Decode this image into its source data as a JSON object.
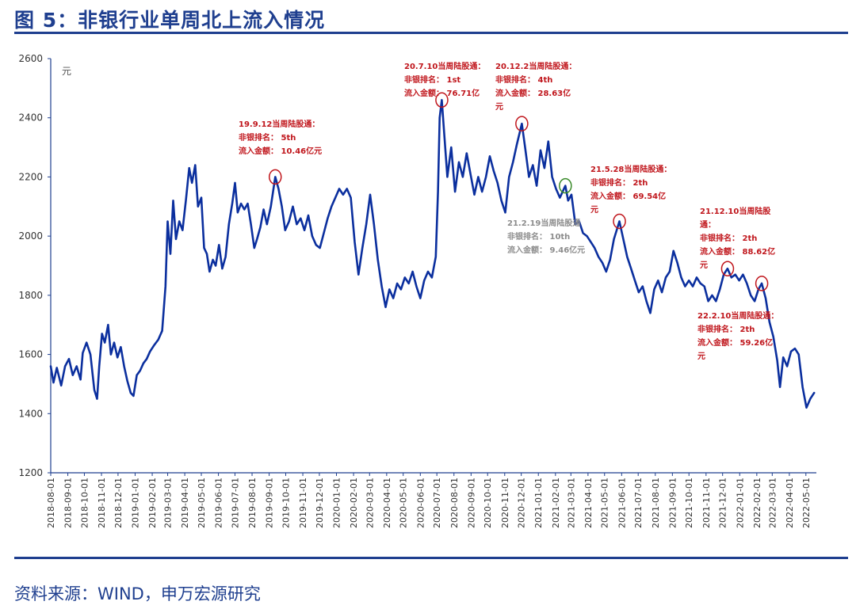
{
  "figure_title": "图 5：非银行业单周北上流入情况",
  "source_note": "资料来源：WIND，申万宏源研究",
  "colors": {
    "line": "#0b2f9e",
    "axis": "#1f3f8f",
    "red_annotation": "#c0161c",
    "gray_annotation": "#8c8c8c",
    "green_marker": "#3a8a2a"
  },
  "chart_data": {
    "type": "line",
    "ylabel": "元",
    "xlabel": "",
    "ylim": [
      1200,
      2600
    ],
    "yticks": [
      1200,
      1400,
      1600,
      1800,
      2000,
      2200,
      2400,
      2600
    ],
    "grid": false,
    "xrange": [
      "2018-08-01",
      "2022-05-20"
    ],
    "xtick_labels": [
      "2018-08-01",
      "2018-09-01",
      "2018-10-01",
      "2018-11-01",
      "2018-12-01",
      "2019-01-01",
      "2019-02-01",
      "2019-03-01",
      "2019-04-01",
      "2019-05-01",
      "2019-06-01",
      "2019-07-01",
      "2019-08-01",
      "2019-09-01",
      "2019-10-01",
      "2019-11-01",
      "2019-12-01",
      "2020-01-01",
      "2020-02-01",
      "2020-03-01",
      "2020-04-01",
      "2020-05-01",
      "2020-06-01",
      "2020-07-01",
      "2020-08-01",
      "2020-09-01",
      "2020-10-01",
      "2020-11-01",
      "2020-12-01",
      "2021-01-01",
      "2021-02-01",
      "2021-03-01",
      "2021-04-01",
      "2021-05-01",
      "2021-06-01",
      "2021-07-01",
      "2021-08-01",
      "2021-09-01",
      "2021-10-01",
      "2021-11-01",
      "2021-12-01",
      "2022-01-01",
      "2022-02-01",
      "2022-03-01",
      "2022-04-01",
      "2022-05-01"
    ],
    "series": [
      {
        "values": [
          [
            "2018-08-01",
            1560
          ],
          [
            "2018-08-06",
            1505
          ],
          [
            "2018-08-12",
            1555
          ],
          [
            "2018-08-20",
            1495
          ],
          [
            "2018-08-27",
            1560
          ],
          [
            "2018-09-03",
            1585
          ],
          [
            "2018-09-10",
            1530
          ],
          [
            "2018-09-17",
            1560
          ],
          [
            "2018-09-24",
            1515
          ],
          [
            "2018-09-28",
            1605
          ],
          [
            "2018-10-05",
            1640
          ],
          [
            "2018-10-12",
            1600
          ],
          [
            "2018-10-19",
            1480
          ],
          [
            "2018-10-24",
            1450
          ],
          [
            "2018-10-28",
            1560
          ],
          [
            "2018-11-02",
            1670
          ],
          [
            "2018-11-07",
            1640
          ],
          [
            "2018-11-13",
            1700
          ],
          [
            "2018-11-18",
            1600
          ],
          [
            "2018-11-24",
            1640
          ],
          [
            "2018-11-30",
            1590
          ],
          [
            "2018-12-06",
            1625
          ],
          [
            "2018-12-12",
            1560
          ],
          [
            "2018-12-18",
            1510
          ],
          [
            "2018-12-24",
            1470
          ],
          [
            "2018-12-29",
            1460
          ],
          [
            "2019-01-04",
            1530
          ],
          [
            "2019-01-10",
            1545
          ],
          [
            "2019-01-16",
            1570
          ],
          [
            "2019-01-22",
            1585
          ],
          [
            "2019-01-28",
            1610
          ],
          [
            "2019-02-04",
            1630
          ],
          [
            "2019-02-12",
            1650
          ],
          [
            "2019-02-19",
            1680
          ],
          [
            "2019-02-25",
            1830
          ],
          [
            "2019-03-01",
            2050
          ],
          [
            "2019-03-06",
            1940
          ],
          [
            "2019-03-11",
            2120
          ],
          [
            "2019-03-16",
            1990
          ],
          [
            "2019-03-22",
            2050
          ],
          [
            "2019-03-28",
            2020
          ],
          [
            "2019-04-03",
            2120
          ],
          [
            "2019-04-09",
            2230
          ],
          [
            "2019-04-14",
            2180
          ],
          [
            "2019-04-20",
            2240
          ],
          [
            "2019-04-25",
            2100
          ],
          [
            "2019-05-01",
            2130
          ],
          [
            "2019-05-06",
            1960
          ],
          [
            "2019-05-11",
            1940
          ],
          [
            "2019-05-16",
            1880
          ],
          [
            "2019-05-22",
            1920
          ],
          [
            "2019-05-27",
            1900
          ],
          [
            "2019-06-02",
            1970
          ],
          [
            "2019-06-08",
            1890
          ],
          [
            "2019-06-14",
            1930
          ],
          [
            "2019-06-20",
            2040
          ],
          [
            "2019-06-26",
            2110
          ],
          [
            "2019-07-01",
            2180
          ],
          [
            "2019-07-06",
            2080
          ],
          [
            "2019-07-12",
            2110
          ],
          [
            "2019-07-18",
            2090
          ],
          [
            "2019-07-24",
            2110
          ],
          [
            "2019-07-30",
            2040
          ],
          [
            "2019-08-05",
            1960
          ],
          [
            "2019-08-10",
            1990
          ],
          [
            "2019-08-16",
            2030
          ],
          [
            "2019-08-22",
            2090
          ],
          [
            "2019-08-28",
            2040
          ],
          [
            "2019-09-04",
            2100
          ],
          [
            "2019-09-12",
            2200
          ],
          [
            "2019-09-18",
            2160
          ],
          [
            "2019-09-24",
            2100
          ],
          [
            "2019-09-30",
            2020
          ],
          [
            "2019-10-07",
            2050
          ],
          [
            "2019-10-14",
            2100
          ],
          [
            "2019-10-21",
            2040
          ],
          [
            "2019-10-28",
            2060
          ],
          [
            "2019-11-04",
            2020
          ],
          [
            "2019-11-11",
            2070
          ],
          [
            "2019-11-18",
            2000
          ],
          [
            "2019-11-25",
            1970
          ],
          [
            "2019-12-02",
            1960
          ],
          [
            "2019-12-09",
            2010
          ],
          [
            "2019-12-16",
            2060
          ],
          [
            "2019-12-23",
            2100
          ],
          [
            "2019-12-30",
            2130
          ],
          [
            "2020-01-06",
            2160
          ],
          [
            "2020-01-13",
            2140
          ],
          [
            "2020-01-20",
            2160
          ],
          [
            "2020-01-27",
            2130
          ],
          [
            "2020-02-03",
            1980
          ],
          [
            "2020-02-10",
            1870
          ],
          [
            "2020-02-17",
            1960
          ],
          [
            "2020-02-24",
            2040
          ],
          [
            "2020-03-02",
            2140
          ],
          [
            "2020-03-09",
            2040
          ],
          [
            "2020-03-16",
            1920
          ],
          [
            "2020-03-23",
            1830
          ],
          [
            "2020-03-30",
            1760
          ],
          [
            "2020-04-06",
            1820
          ],
          [
            "2020-04-13",
            1790
          ],
          [
            "2020-04-20",
            1840
          ],
          [
            "2020-04-27",
            1820
          ],
          [
            "2020-05-04",
            1860
          ],
          [
            "2020-05-11",
            1840
          ],
          [
            "2020-05-18",
            1880
          ],
          [
            "2020-05-25",
            1830
          ],
          [
            "2020-06-01",
            1790
          ],
          [
            "2020-06-08",
            1850
          ],
          [
            "2020-06-15",
            1880
          ],
          [
            "2020-06-22",
            1860
          ],
          [
            "2020-06-29",
            1930
          ],
          [
            "2020-07-03",
            2150
          ],
          [
            "2020-07-06",
            2400
          ],
          [
            "2020-07-10",
            2460
          ],
          [
            "2020-07-15",
            2330
          ],
          [
            "2020-07-20",
            2200
          ],
          [
            "2020-07-27",
            2300
          ],
          [
            "2020-08-03",
            2150
          ],
          [
            "2020-08-10",
            2250
          ],
          [
            "2020-08-17",
            2200
          ],
          [
            "2020-08-24",
            2280
          ],
          [
            "2020-08-31",
            2210
          ],
          [
            "2020-09-07",
            2140
          ],
          [
            "2020-09-14",
            2200
          ],
          [
            "2020-09-21",
            2150
          ],
          [
            "2020-09-28",
            2200
          ],
          [
            "2020-10-05",
            2270
          ],
          [
            "2020-10-12",
            2220
          ],
          [
            "2020-10-19",
            2180
          ],
          [
            "2020-10-26",
            2120
          ],
          [
            "2020-11-02",
            2080
          ],
          [
            "2020-11-09",
            2200
          ],
          [
            "2020-11-16",
            2250
          ],
          [
            "2020-11-23",
            2310
          ],
          [
            "2020-12-02",
            2380
          ],
          [
            "2020-12-08",
            2300
          ],
          [
            "2020-12-15",
            2200
          ],
          [
            "2020-12-22",
            2240
          ],
          [
            "2020-12-29",
            2170
          ],
          [
            "2021-01-05",
            2290
          ],
          [
            "2021-01-12",
            2230
          ],
          [
            "2021-01-19",
            2320
          ],
          [
            "2021-01-26",
            2200
          ],
          [
            "2021-02-02",
            2160
          ],
          [
            "2021-02-09",
            2130
          ],
          [
            "2021-02-19",
            2170
          ],
          [
            "2021-02-24",
            2120
          ],
          [
            "2021-03-02",
            2140
          ],
          [
            "2021-03-09",
            2040
          ],
          [
            "2021-03-16",
            2050
          ],
          [
            "2021-03-23",
            2010
          ],
          [
            "2021-03-30",
            2000
          ],
          [
            "2021-04-06",
            1980
          ],
          [
            "2021-04-13",
            1960
          ],
          [
            "2021-04-20",
            1930
          ],
          [
            "2021-04-27",
            1910
          ],
          [
            "2021-05-04",
            1880
          ],
          [
            "2021-05-11",
            1920
          ],
          [
            "2021-05-18",
            1990
          ],
          [
            "2021-05-28",
            2050
          ],
          [
            "2021-06-04",
            1990
          ],
          [
            "2021-06-11",
            1930
          ],
          [
            "2021-06-18",
            1890
          ],
          [
            "2021-06-25",
            1850
          ],
          [
            "2021-07-02",
            1810
          ],
          [
            "2021-07-09",
            1830
          ],
          [
            "2021-07-16",
            1780
          ],
          [
            "2021-07-23",
            1740
          ],
          [
            "2021-07-30",
            1820
          ],
          [
            "2021-08-06",
            1850
          ],
          [
            "2021-08-13",
            1810
          ],
          [
            "2021-08-20",
            1860
          ],
          [
            "2021-08-27",
            1880
          ],
          [
            "2021-09-03",
            1950
          ],
          [
            "2021-09-10",
            1910
          ],
          [
            "2021-09-17",
            1860
          ],
          [
            "2021-09-24",
            1830
          ],
          [
            "2021-10-01",
            1850
          ],
          [
            "2021-10-08",
            1830
          ],
          [
            "2021-10-15",
            1860
          ],
          [
            "2021-10-22",
            1840
          ],
          [
            "2021-10-29",
            1830
          ],
          [
            "2021-11-05",
            1780
          ],
          [
            "2021-11-12",
            1800
          ],
          [
            "2021-11-19",
            1780
          ],
          [
            "2021-11-26",
            1820
          ],
          [
            "2021-12-03",
            1870
          ],
          [
            "2021-12-10",
            1890
          ],
          [
            "2021-12-17",
            1860
          ],
          [
            "2021-12-24",
            1870
          ],
          [
            "2021-12-31",
            1850
          ],
          [
            "2022-01-07",
            1870
          ],
          [
            "2022-01-14",
            1840
          ],
          [
            "2022-01-21",
            1800
          ],
          [
            "2022-01-28",
            1780
          ],
          [
            "2022-02-04",
            1820
          ],
          [
            "2022-02-10",
            1840
          ],
          [
            "2022-02-17",
            1790
          ],
          [
            "2022-02-24",
            1710
          ],
          [
            "2022-03-03",
            1660
          ],
          [
            "2022-03-10",
            1580
          ],
          [
            "2022-03-15",
            1490
          ],
          [
            "2022-03-21",
            1590
          ],
          [
            "2022-03-28",
            1560
          ],
          [
            "2022-04-04",
            1610
          ],
          [
            "2022-04-11",
            1620
          ],
          [
            "2022-04-18",
            1600
          ],
          [
            "2022-04-25",
            1490
          ],
          [
            "2022-05-02",
            1420
          ],
          [
            "2022-05-09",
            1450
          ],
          [
            "2022-05-16",
            1470
          ]
        ]
      }
    ],
    "annotations": [
      {
        "date": "2019-09-12",
        "value": 2200,
        "color": "red",
        "lines": [
          "19.9.12当周陆股通：",
          "非银排名：  5th",
          "流入金额：  10.46亿元"
        ]
      },
      {
        "date": "2020-07-10",
        "value": 2460,
        "color": "red",
        "lines": [
          "20.7.10当周陆股通：",
          "非银排名：  1st",
          "流入金额：  76.71亿"
        ]
      },
      {
        "date": "2020-12-02",
        "value": 2380,
        "color": "red",
        "lines": [
          "20.12.2当周陆股通：",
          "非银排名：  4th",
          "流入金额：  28.63亿",
          "元"
        ]
      },
      {
        "date": "2021-02-19",
        "value": 2170,
        "color": "gray",
        "lines": [
          "21.2.19当周陆股通",
          "非银排名：  10th",
          "流入金额：  9.46亿元"
        ]
      },
      {
        "date": "2021-05-28",
        "value": 2050,
        "color": "red",
        "lines": [
          "21.5.28当周陆股通：",
          "非银排名：  2th",
          "流入金额：  69.54亿",
          "元"
        ]
      },
      {
        "date": "2021-12-10",
        "value": 1890,
        "color": "red",
        "lines": [
          "21.12.10当周陆股",
          "通：",
          "非银排名：  2th",
          "流入金额：  88.62亿",
          "元"
        ]
      },
      {
        "date": "2022-02-10",
        "value": 1840,
        "color": "red",
        "lines": [
          "22.2.10当周陆股通：",
          "非银排名：  2th",
          "流入金额：  59.26亿",
          "元"
        ]
      }
    ]
  }
}
